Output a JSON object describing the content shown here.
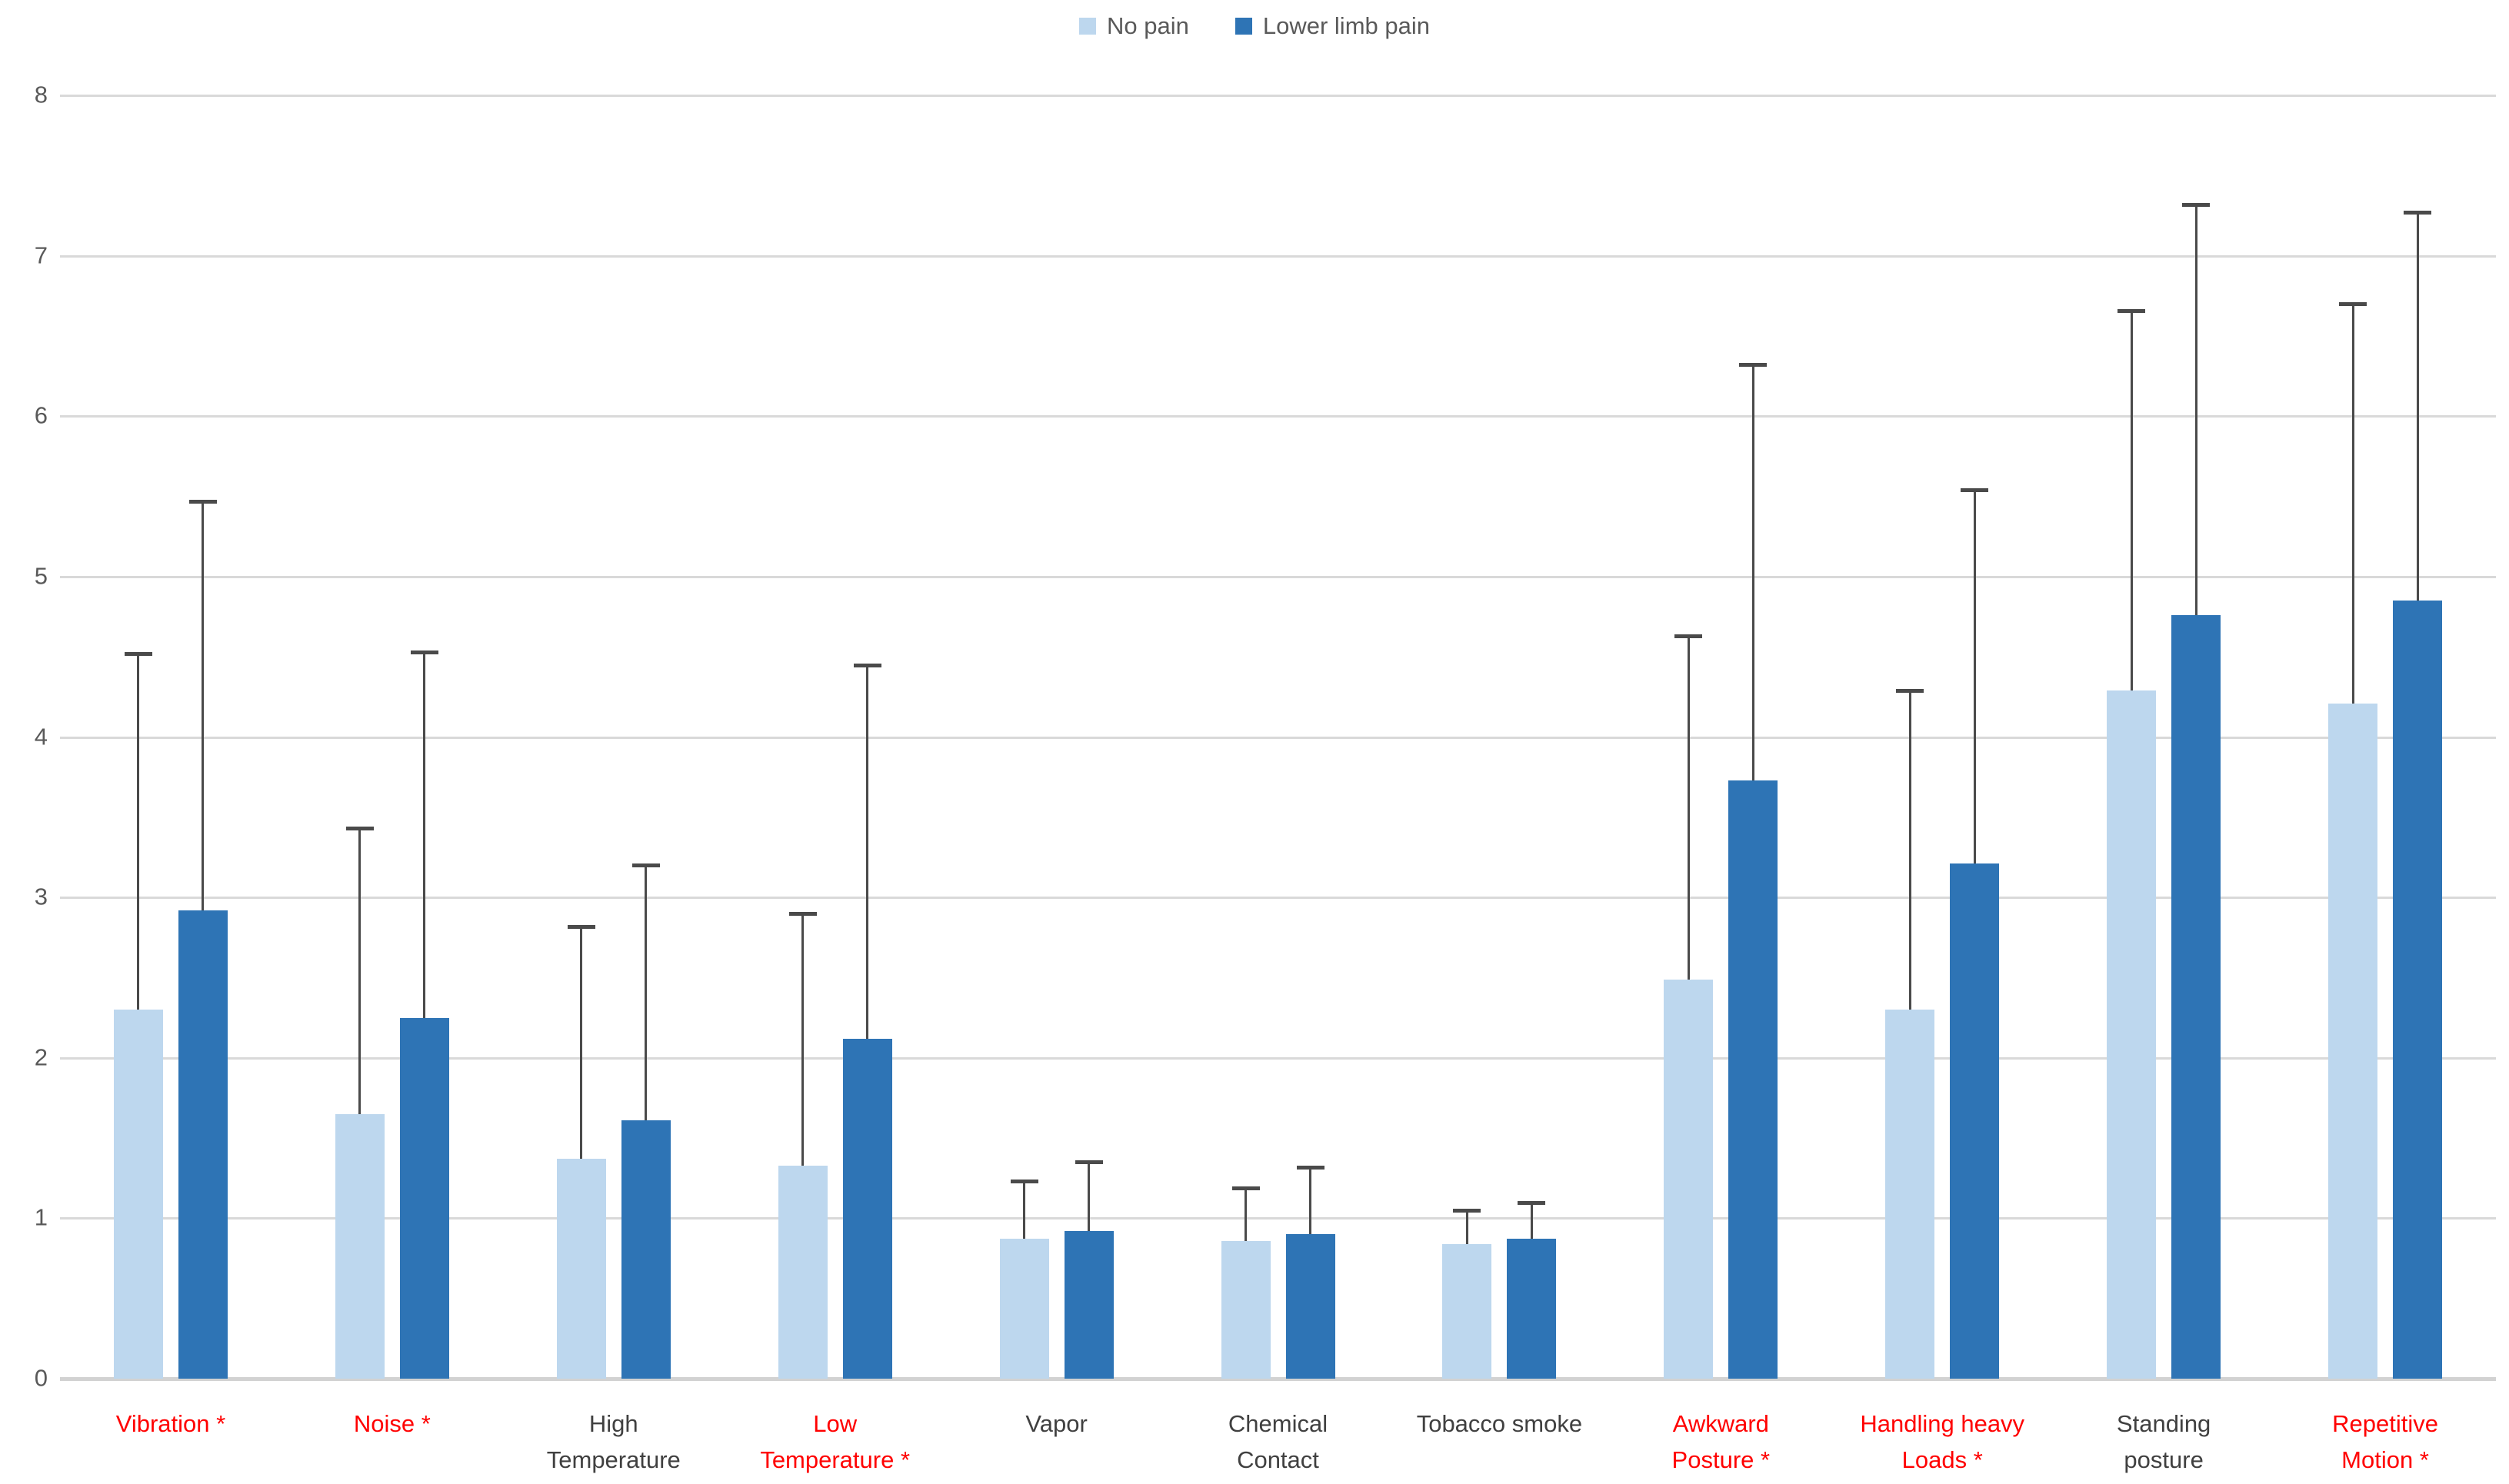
{
  "chart": {
    "legend_items": [
      {
        "label": "No pain",
        "color": "#BDD7EE"
      },
      {
        "label": "Lower limb pain",
        "color": "#2E74B5"
      }
    ],
    "y_ticks": [
      "0",
      "1",
      "2",
      "3",
      "4",
      "5",
      "6",
      "7",
      "8"
    ]
  },
  "chart_data": {
    "type": "bar",
    "title": "",
    "xlabel": "",
    "ylabel": "",
    "ylim": [
      0,
      8
    ],
    "grid": true,
    "legend_position": "top-center",
    "error_bars": "upper-only",
    "categories": [
      "Vibration *",
      "Noise *",
      "High Temperature",
      "Low Temperature *",
      "Vapor",
      "Chemical Contact",
      "Tobacco smoke",
      "Awkward Posture *",
      "Handling heavy Loads *",
      "Standing posture",
      "Repetitive Motion *"
    ],
    "category_label_lines": [
      [
        "Vibration *"
      ],
      [
        "Noise *"
      ],
      [
        "High",
        "Temperature"
      ],
      [
        "Low",
        "Temperature *"
      ],
      [
        "Vapor"
      ],
      [
        "Chemical",
        "Contact"
      ],
      [
        "Tobacco smoke"
      ],
      [
        "Awkward",
        "Posture *"
      ],
      [
        "Handling heavy",
        "Loads *"
      ],
      [
        "Standing",
        "posture"
      ],
      [
        "Repetitive",
        "Motion *"
      ]
    ],
    "starred_categories": [
      true,
      true,
      false,
      true,
      false,
      false,
      false,
      true,
      true,
      false,
      true
    ],
    "series": [
      {
        "name": "No pain",
        "color": "#BDD7EE",
        "values": [
          2.3,
          1.65,
          1.37,
          1.33,
          0.87,
          0.86,
          0.84,
          2.49,
          2.3,
          4.29,
          4.21
        ],
        "error_top": [
          4.52,
          3.43,
          2.82,
          2.9,
          1.23,
          1.19,
          1.05,
          4.63,
          4.29,
          6.66,
          6.7
        ]
      },
      {
        "name": "Lower limb pain",
        "color": "#2E74B5",
        "values": [
          2.92,
          2.25,
          1.61,
          2.12,
          0.92,
          0.9,
          0.87,
          3.73,
          3.21,
          4.76,
          4.85
        ],
        "error_top": [
          5.47,
          4.53,
          3.2,
          4.45,
          1.35,
          1.32,
          1.1,
          6.32,
          5.54,
          7.32,
          7.27
        ]
      }
    ],
    "colors": {
      "highlight_label": "#FF0000",
      "normal_label": "#404040",
      "tick_label": "#595959",
      "gridline": "#D9D9D9",
      "axis_line": "#D2D2D2",
      "error_bar": "#4A4A4A"
    }
  }
}
